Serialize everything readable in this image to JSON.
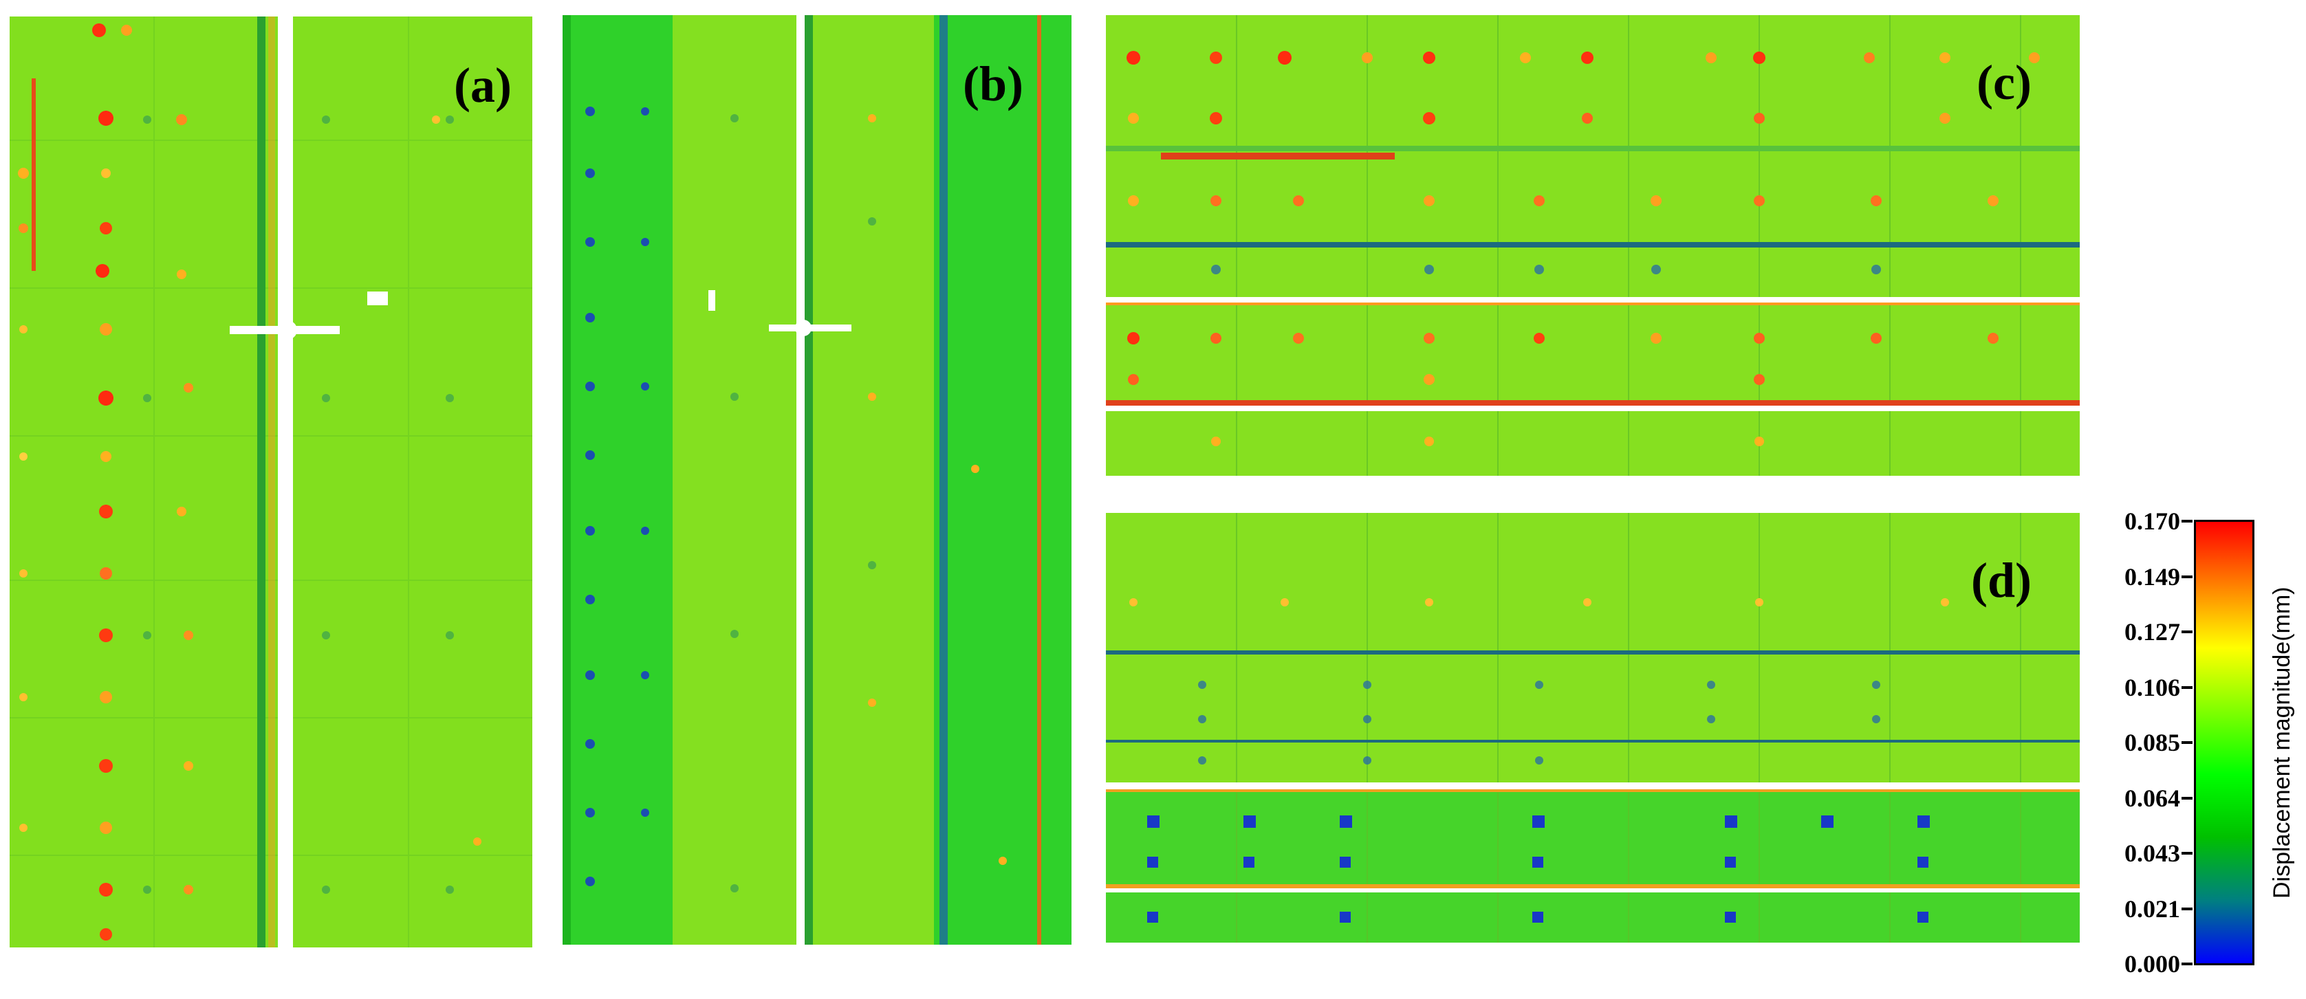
{
  "figure": {
    "panels": [
      {
        "id": "a",
        "label": "(a)"
      },
      {
        "id": "b",
        "label": "(b)"
      },
      {
        "id": "c",
        "label": "(c)"
      },
      {
        "id": "d",
        "label": "(d)"
      }
    ],
    "colorbar": {
      "title": "Displacement magnitude(mm)",
      "ticks": [
        "0.170",
        "0.149",
        "0.127",
        "0.106",
        "0.085",
        "0.064",
        "0.043",
        "0.021",
        "0.000"
      ],
      "gradient": [
        "#ff0000",
        "#ff8000",
        "#ffff00",
        "#80ff00",
        "#00ff00",
        "#00c000",
        "#008080",
        "#0000ff"
      ]
    },
    "colors": {
      "base": "#7fe020",
      "high": "#ff2000",
      "mid": "#ffd000",
      "low": "#1040c0",
      "background": "#ffffff"
    }
  }
}
